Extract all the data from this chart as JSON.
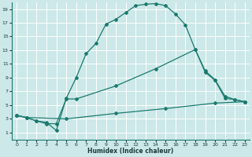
{
  "xlabel": "Humidex (Indice chaleur)",
  "ylabel": "",
  "bg_color": "#cce8e8",
  "grid_color": "#ffffff",
  "line_color": "#1a7a6e",
  "xlim": [
    -0.5,
    23.5
  ],
  "ylim": [
    0,
    20
  ],
  "xticks": [
    0,
    1,
    2,
    3,
    4,
    5,
    6,
    7,
    8,
    9,
    10,
    11,
    12,
    13,
    14,
    15,
    16,
    17,
    18,
    19,
    20,
    21,
    22,
    23
  ],
  "yticks": [
    1,
    3,
    5,
    7,
    9,
    11,
    13,
    15,
    17,
    19
  ],
  "line1_x": [
    0,
    1,
    2,
    3,
    4,
    5,
    6,
    7,
    8,
    9,
    10,
    11,
    12,
    13,
    14,
    15,
    16,
    17,
    18,
    19,
    20,
    21,
    22,
    23
  ],
  "line1_y": [
    3.5,
    3.2,
    2.7,
    2.5,
    1.3,
    6.0,
    9.0,
    12.5,
    14.0,
    16.8,
    17.5,
    18.5,
    19.5,
    19.7,
    19.8,
    19.5,
    18.3,
    16.7,
    13.1,
    10.0,
    8.7,
    6.3,
    5.8,
    5.5
  ],
  "line2_x": [
    0,
    1,
    2,
    3,
    4,
    5,
    6,
    10,
    14,
    18,
    19,
    20,
    21,
    22,
    23
  ],
  "line2_y": [
    3.5,
    3.2,
    2.7,
    2.3,
    2.3,
    5.9,
    5.9,
    7.8,
    10.3,
    13.1,
    9.8,
    8.6,
    6.0,
    5.8,
    5.5
  ],
  "line3_x": [
    0,
    1,
    5,
    10,
    15,
    20,
    23
  ],
  "line3_y": [
    3.5,
    3.2,
    3.0,
    3.8,
    4.5,
    5.3,
    5.5
  ]
}
